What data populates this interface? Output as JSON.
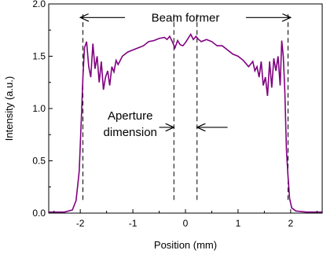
{
  "chart_data": {
    "type": "line",
    "xlabel": "Position (mm)",
    "ylabel": "Intensity (a.u.)",
    "xlim": [
      -2.6,
      2.6
    ],
    "ylim": [
      0.0,
      2.0
    ],
    "xticks": [
      -2,
      -1,
      0,
      1,
      2
    ],
    "xtick_labels": [
      "-2",
      "-1",
      "0",
      "1",
      "2"
    ],
    "yticks": [
      0.0,
      0.5,
      1.0,
      1.5,
      2.0
    ],
    "ytick_labels": [
      "0.0",
      "0.5",
      "1.0",
      "1.5",
      "2.0"
    ],
    "grid": false,
    "series": [
      {
        "color": "#800080",
        "x": [
          -2.6,
          -2.3,
          -2.15,
          -2.08,
          -2.02,
          -1.98,
          -1.95,
          -1.92,
          -1.88,
          -1.84,
          -1.8,
          -1.76,
          -1.72,
          -1.68,
          -1.64,
          -1.6,
          -1.56,
          -1.52,
          -1.48,
          -1.44,
          -1.4,
          -1.36,
          -1.32,
          -1.28,
          -1.2,
          -1.1,
          -1.0,
          -0.9,
          -0.8,
          -0.7,
          -0.6,
          -0.5,
          -0.4,
          -0.35,
          -0.3,
          -0.25,
          -0.2,
          -0.15,
          -0.1,
          -0.05,
          0.0,
          0.05,
          0.1,
          0.15,
          0.2,
          0.25,
          0.3,
          0.4,
          0.5,
          0.6,
          0.7,
          0.8,
          0.9,
          1.0,
          1.1,
          1.2,
          1.28,
          1.32,
          1.36,
          1.4,
          1.44,
          1.48,
          1.52,
          1.56,
          1.6,
          1.64,
          1.68,
          1.72,
          1.76,
          1.8,
          1.83,
          1.86,
          1.89,
          1.92,
          1.95,
          1.98,
          2.02,
          2.1,
          2.3,
          2.6
        ],
        "y": [
          0.01,
          0.01,
          0.03,
          0.12,
          0.4,
          0.9,
          1.3,
          1.58,
          1.64,
          1.4,
          1.3,
          1.62,
          1.38,
          1.5,
          1.25,
          1.45,
          1.18,
          1.3,
          1.36,
          1.22,
          1.4,
          1.35,
          1.46,
          1.42,
          1.5,
          1.54,
          1.56,
          1.58,
          1.6,
          1.64,
          1.65,
          1.67,
          1.68,
          1.66,
          1.69,
          1.64,
          1.58,
          1.65,
          1.61,
          1.6,
          1.63,
          1.67,
          1.71,
          1.66,
          1.69,
          1.66,
          1.64,
          1.66,
          1.64,
          1.6,
          1.6,
          1.56,
          1.52,
          1.5,
          1.46,
          1.4,
          1.45,
          1.36,
          1.4,
          1.3,
          1.45,
          1.22,
          1.3,
          1.12,
          1.45,
          1.2,
          1.48,
          1.36,
          1.5,
          1.22,
          1.65,
          1.5,
          1.15,
          0.6,
          0.35,
          0.14,
          0.05,
          0.02,
          0.01,
          0.01
        ]
      }
    ],
    "annotations": [
      {
        "id": "beam_former",
        "text": "Beam former",
        "x_from": -2.0,
        "x_to": 2.0,
        "y": 1.87
      },
      {
        "id": "aperture",
        "text_line1": "Aperture",
        "text_line2": "dimension",
        "x_from": -0.22,
        "x_to": 0.22,
        "y": 0.82
      }
    ],
    "dashed_lines_x": [
      -1.95,
      -0.22,
      0.22,
      1.95
    ]
  }
}
